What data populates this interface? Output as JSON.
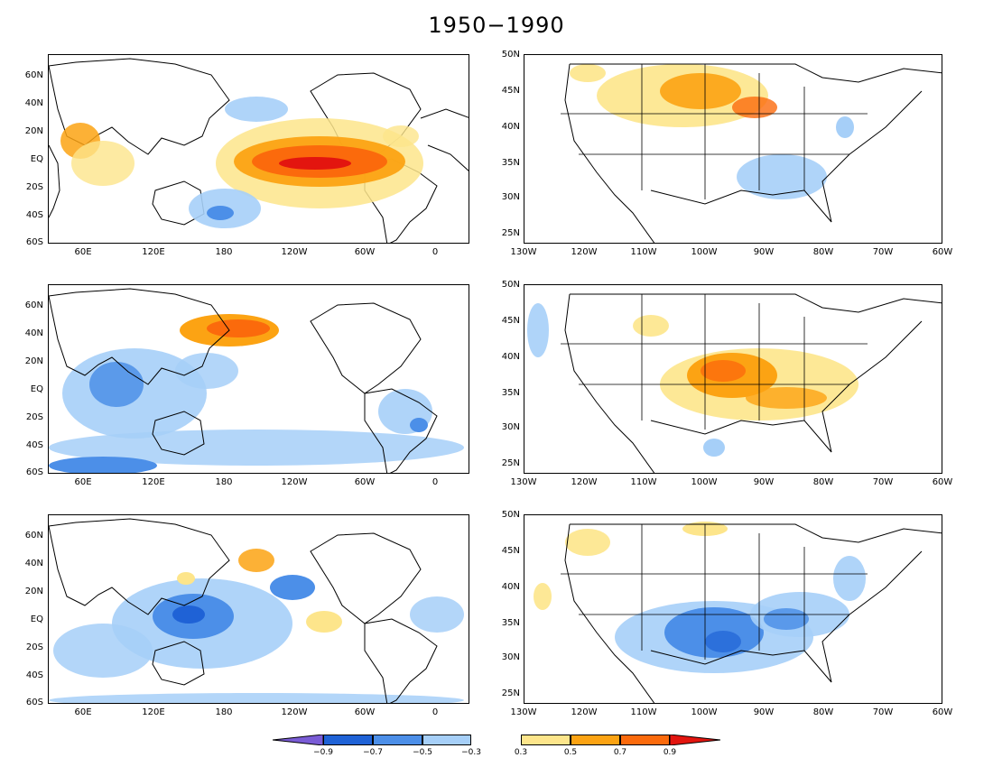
{
  "title": "1950−1990",
  "global_lat_ticks": [
    "60N",
    "40N",
    "20N",
    "EQ",
    "20S",
    "40S",
    "60S"
  ],
  "global_lon_ticks": [
    "60E",
    "120E",
    "180",
    "120W",
    "60W",
    "0"
  ],
  "us_lat_ticks": [
    "50N",
    "45N",
    "40N",
    "35N",
    "30N",
    "25N"
  ],
  "us_lon_ticks": [
    "130W",
    "120W",
    "110W",
    "100W",
    "90W",
    "80W",
    "70W",
    "60W"
  ],
  "colorbar": {
    "neg_labels": [
      "−0.9",
      "−0.7",
      "−0.5",
      "−0.3"
    ],
    "pos_labels": [
      "0.3",
      "0.5",
      "0.7",
      "0.9"
    ],
    "colors": {
      "neg_extreme": "#7a5cd6",
      "neg_09": "#1f62d6",
      "neg_07": "#4c8fe8",
      "neg_05": "#a6cff8",
      "pos_03": "#fde58b",
      "pos_05": "#fca313",
      "pos_07": "#fb6a0c",
      "pos_09": "#e3150f"
    }
  },
  "panels": [
    {
      "id": "row1-global",
      "pattern": "El Nino warm eastern tropical Pacific"
    },
    {
      "id": "row1-us",
      "pattern": "warm northern plains, cool southeast"
    },
    {
      "id": "row2-global",
      "pattern": "warm North Pacific, cool Indian Ocean"
    },
    {
      "id": "row2-us",
      "pattern": "warm central plains and mid-south"
    },
    {
      "id": "row3-global",
      "pattern": "cool western Pacific"
    },
    {
      "id": "row3-us",
      "pattern": "cool southern plains and southeast"
    }
  ]
}
